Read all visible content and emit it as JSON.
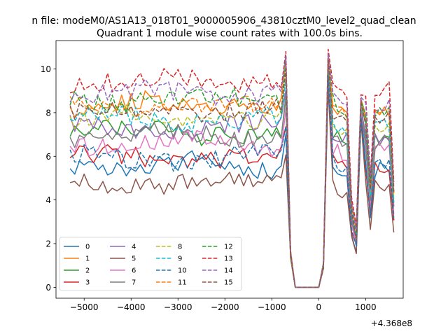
{
  "figure_title": "n file: modeM0/AS1A13_018T01_9000005906_43810cztM0_level2_quad_clean",
  "chart_data": {
    "type": "line",
    "title": "Quadrant 1 module wise count rates with 100.0s bins.",
    "xlabel": "",
    "ylabel": "",
    "x_offset_label": "+4.368e8",
    "xlim": [
      -5600,
      1800
    ],
    "ylim": [
      -0.5,
      11.3
    ],
    "x_ticks": [
      -5000,
      -4000,
      -3000,
      -2000,
      -1000,
      0,
      1000
    ],
    "x_tick_labels": [
      "−5000",
      "−4000",
      "−3000",
      "−2000",
      "−1000",
      "0",
      "1000"
    ],
    "y_ticks": [
      0,
      2,
      4,
      6,
      8,
      10
    ],
    "y_tick_labels": [
      "0",
      "2",
      "4",
      "6",
      "8",
      "10"
    ],
    "grid": false,
    "legend_position": "lower-left",
    "legend_columns": 4,
    "x_range": [
      -5300,
      1600
    ],
    "x_step": 100,
    "series": [
      {
        "name": "0",
        "color": "#1f77b4",
        "style": "solid",
        "base": 5.6,
        "peak": 9.8
      },
      {
        "name": "1",
        "color": "#ff7f0e",
        "style": "solid",
        "base": 8.4,
        "peak": 10.5
      },
      {
        "name": "2",
        "color": "#2ca02c",
        "style": "solid",
        "base": 7.1,
        "peak": 10.2
      },
      {
        "name": "3",
        "color": "#d62728",
        "style": "solid",
        "base": 5.9,
        "peak": 9.6
      },
      {
        "name": "4",
        "color": "#9467bd",
        "style": "solid",
        "base": 7.3,
        "peak": 10.0
      },
      {
        "name": "5",
        "color": "#8c564b",
        "style": "solid",
        "base": 4.8,
        "peak": 9.1
      },
      {
        "name": "6",
        "color": "#e377c2",
        "style": "solid",
        "base": 6.6,
        "peak": 9.9
      },
      {
        "name": "7",
        "color": "#7f7f7f",
        "style": "solid",
        "base": 7.0,
        "peak": 10.1
      },
      {
        "name": "8",
        "color": "#bcbd22",
        "style": "dashed",
        "base": 7.8,
        "peak": 10.3
      },
      {
        "name": "9",
        "color": "#17becf",
        "style": "dashed",
        "base": 7.7,
        "peak": 10.2
      },
      {
        "name": "10",
        "color": "#1f77b4",
        "style": "dashed",
        "base": 5.9,
        "peak": 9.7
      },
      {
        "name": "11",
        "color": "#ff7f0e",
        "style": "dashed",
        "base": 8.3,
        "peak": 10.5
      },
      {
        "name": "12",
        "color": "#2ca02c",
        "style": "dashed",
        "base": 8.6,
        "peak": 10.6
      },
      {
        "name": "13",
        "color": "#d62728",
        "style": "dashed",
        "base": 9.5,
        "peak": 10.9
      },
      {
        "name": "14",
        "color": "#9467bd",
        "style": "dashed",
        "base": 8.9,
        "peak": 10.7
      },
      {
        "name": "15",
        "color": "#8c564b",
        "style": "dashed",
        "base": 8.1,
        "peak": 10.4
      }
    ]
  }
}
